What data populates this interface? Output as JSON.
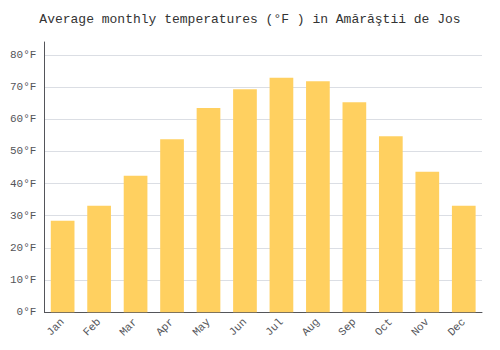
{
  "chart_data": {
    "type": "bar",
    "title": "Average monthly temperatures (°F ) in Amărăştii de Jos",
    "categories": [
      "Jan",
      "Feb",
      "Mar",
      "Apr",
      "May",
      "Jun",
      "Jul",
      "Aug",
      "Sep",
      "Oct",
      "Nov",
      "Dec"
    ],
    "values": [
      28.4,
      33.1,
      42.4,
      53.8,
      63.5,
      69.3,
      72.9,
      71.8,
      65.3,
      54.7,
      43.7,
      33.1
    ],
    "color": "#FFD060",
    "ylim": [
      0,
      84
    ],
    "yticks": [
      {
        "value": 0,
        "label": "0°F"
      },
      {
        "value": 10,
        "label": "10°F"
      },
      {
        "value": 20,
        "label": "20°F"
      },
      {
        "value": 30,
        "label": "30°F"
      },
      {
        "value": 40,
        "label": "40°F"
      },
      {
        "value": 50,
        "label": "50°F"
      },
      {
        "value": 60,
        "label": "60°F"
      },
      {
        "value": 70,
        "label": "70°F"
      },
      {
        "value": 80,
        "label": "80°F"
      }
    ],
    "grid": true
  }
}
